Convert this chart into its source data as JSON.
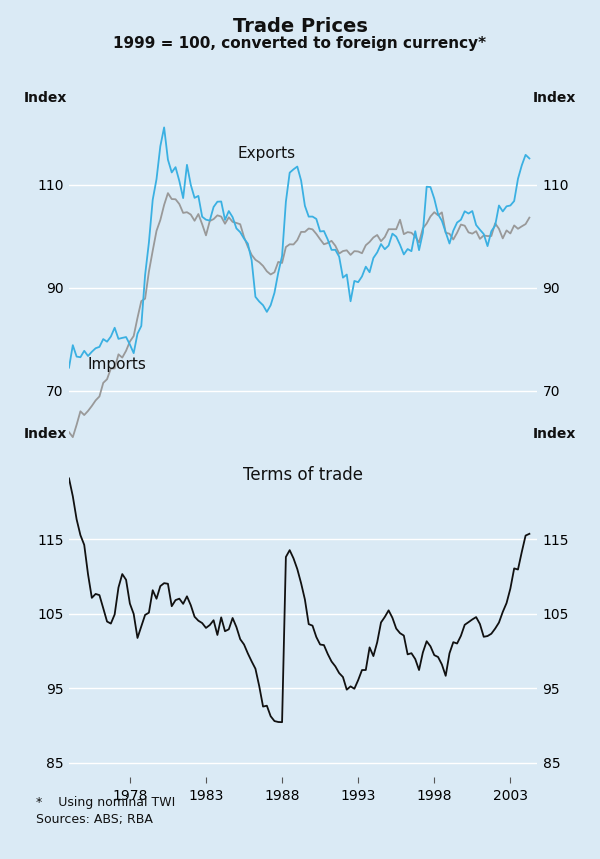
{
  "title": "Trade Prices",
  "subtitle": "1999 = 100, converted to foreign currency*",
  "background_color": "#daeaf5",
  "top_panel": {
    "ylabel_left": "Index",
    "ylabel_right": "Index",
    "ylim": [
      60,
      125
    ],
    "yticks": [
      70,
      90,
      110
    ],
    "exports_label": "Exports",
    "imports_label": "Imports",
    "exports_color": "#3ab0e2",
    "imports_color": "#999999"
  },
  "bottom_panel": {
    "ylabel_left": "Index",
    "ylabel_right": "Index",
    "ylim": [
      83,
      128
    ],
    "yticks": [
      85,
      95,
      105,
      115
    ],
    "panel_title": "Terms of trade",
    "tot_color": "#111111"
  },
  "xticks": [
    1978,
    1983,
    1988,
    1993,
    1998,
    2003
  ],
  "xlim": [
    1974.0,
    2004.75
  ],
  "footnote_line1": "*    Using nominal TWI",
  "footnote_line2": "Sources: ABS; RBA"
}
